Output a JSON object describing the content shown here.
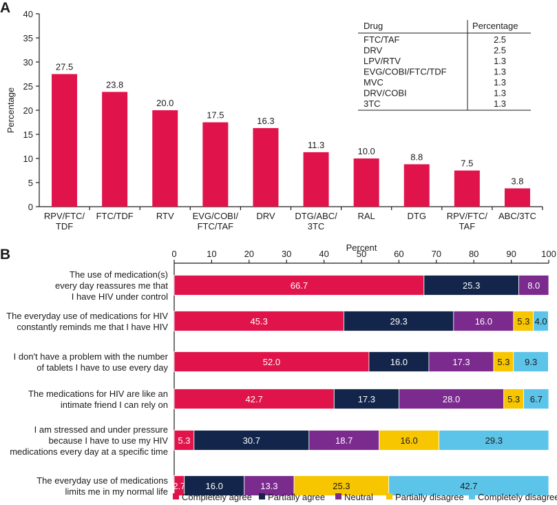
{
  "panel_a_label": "A",
  "panel_b_label": "B",
  "colors": {
    "bar": "#e0144a",
    "completely_agree": "#e0144a",
    "partially_agree": "#13254a",
    "neutral": "#7b2a8e",
    "partially_disagree": "#f7c600",
    "completely_disagree": "#5cc4e8",
    "axis": "#1a1a1a"
  },
  "chart_data": [
    {
      "type": "bar",
      "title": "",
      "xlabel": "",
      "ylabel": "Percentage",
      "ylim": [
        0,
        40
      ],
      "yticks": [
        "0",
        "5",
        "10",
        "15",
        "20",
        "25",
        "30",
        "35",
        "40"
      ],
      "categories": [
        [
          "RPV/FTC/",
          "TDF"
        ],
        [
          "FTC/TDF"
        ],
        [
          "RTV"
        ],
        [
          "EVG/COBI/",
          "FTC/TAF"
        ],
        [
          "DRV"
        ],
        [
          "DTG/ABC/",
          "3TC"
        ],
        [
          "RAL"
        ],
        [
          "DTG"
        ],
        [
          "RPV/FTC/",
          "TAF"
        ],
        [
          "ABC/3TC"
        ]
      ],
      "values": [
        27.5,
        23.8,
        20.0,
        17.5,
        16.3,
        11.3,
        10.0,
        8.8,
        7.5,
        3.8
      ],
      "value_labels": [
        "27.5",
        "23.8",
        "20.0",
        "17.5",
        "16.3",
        "11.3",
        "10.0",
        "8.8",
        "7.5",
        "3.8"
      ],
      "inset_table": {
        "headers": [
          "Drug",
          "Percentage"
        ],
        "rows": [
          [
            "FTC/TAF",
            "2.5"
          ],
          [
            "DRV",
            "2.5"
          ],
          [
            "LPV/RTV",
            "1.3"
          ],
          [
            "EVG/COBI/FTC/TDF",
            "1.3"
          ],
          [
            "MVC",
            "1.3"
          ],
          [
            "DRV/COBI",
            "1.3"
          ],
          [
            "3TC",
            "1.3"
          ]
        ]
      }
    },
    {
      "type": "bar",
      "orientation": "horizontal-stacked",
      "xlabel": "Percent",
      "xlim": [
        0,
        100
      ],
      "xticks": [
        "0",
        "10",
        "20",
        "30",
        "40",
        "50",
        "60",
        "70",
        "80",
        "90",
        "100"
      ],
      "categories": [
        [
          "The use of medication(s)",
          "every day reassures me that",
          "I have HIV under control"
        ],
        [
          "The everyday use of medications for HIV",
          "constantly reminds me that I have HIV"
        ],
        [
          "I don't have a problem with the number",
          "of tablets I have to use every day"
        ],
        [
          "The medications for HIV are like an",
          "intimate friend I can rely on"
        ],
        [
          "I am stressed and under pressure",
          "because I have to use my HIV",
          "medications every day at a specific time"
        ],
        [
          "The everyday use of medications",
          "limits me in my normal life"
        ]
      ],
      "series": [
        {
          "name": "Completely agree",
          "values": [
            66.7,
            45.3,
            52.0,
            42.7,
            5.3,
            2.7
          ],
          "labels": [
            "66.7",
            "45.3",
            "52.0",
            "42.7",
            "5.3",
            "2.7"
          ]
        },
        {
          "name": "Partially agree",
          "values": [
            25.3,
            29.3,
            16.0,
            17.3,
            30.7,
            16.0
          ],
          "labels": [
            "25.3",
            "29.3",
            "16.0",
            "17.3",
            "30.7",
            "16.0"
          ]
        },
        {
          "name": "Neutral",
          "values": [
            8.0,
            16.0,
            17.3,
            28.0,
            18.7,
            13.3
          ],
          "labels": [
            "8.0",
            "16.0",
            "17.3",
            "28.0",
            "18.7",
            "13.3"
          ]
        },
        {
          "name": "Partially disagree",
          "values": [
            0,
            5.3,
            5.3,
            5.3,
            16.0,
            25.3
          ],
          "labels": [
            "",
            "5.3",
            "5.3",
            "5.3",
            "16.0",
            "25.3"
          ]
        },
        {
          "name": "Completely disagree",
          "values": [
            0,
            4.0,
            9.3,
            6.7,
            29.3,
            42.7
          ],
          "labels": [
            "",
            "4.0",
            "9.3",
            "6.7",
            "29.3",
            "42.7"
          ]
        }
      ],
      "legend": [
        "Completely agree",
        "Partially agree",
        "Neutral",
        "Partially disagree",
        "Completely disagree"
      ],
      "legend_position": "bottom"
    }
  ]
}
